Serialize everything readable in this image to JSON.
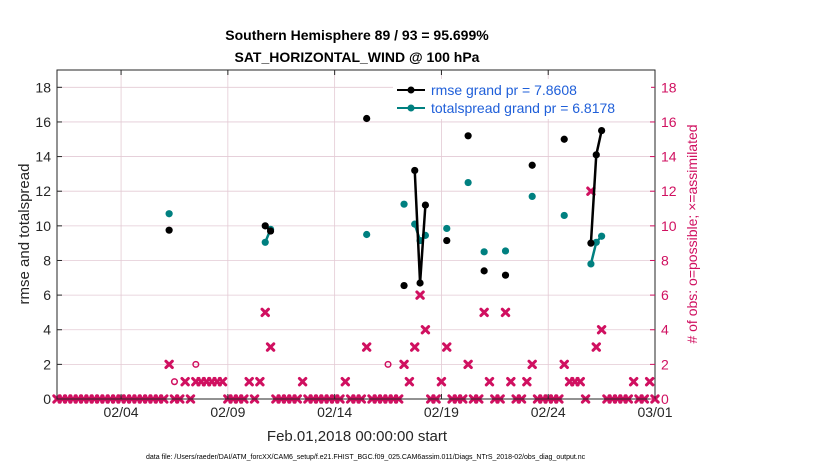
{
  "chart_data": {
    "type": "scatter",
    "title": "Southern Hemisphere 89 / 93 = 95.699%",
    "subtitle": "SAT_HORIZONTAL_WIND @ 100 hPa",
    "xlabel": "Feb.01,2018 00:00:00 start",
    "ylabel": "rmse and totalspread",
    "ylabel_right": "# of obs: o=possible; ×=assimilated",
    "xlim": [
      1,
      29
    ],
    "xtick_values": [
      4,
      9,
      14,
      19,
      24,
      29
    ],
    "xtick_labels": [
      "02/04",
      "02/09",
      "02/14",
      "02/19",
      "02/24",
      "03/01"
    ],
    "ylim": [
      0,
      19
    ],
    "ytick_values": [
      0,
      2,
      4,
      6,
      8,
      10,
      12,
      14,
      16,
      18
    ],
    "ytick_labels": [
      "0",
      "2",
      "4",
      "6",
      "8",
      "10",
      "12",
      "14",
      "16",
      "18"
    ],
    "ylim_right": [
      0,
      19
    ],
    "ytick_labels_right": [
      "0",
      "2",
      "4",
      "6",
      "8",
      "10",
      "12",
      "14",
      "16",
      "18"
    ],
    "grid": true,
    "legend_position": "top-right",
    "footnote": "data file: /Users/raeder/DAI/ATM_forcXX/CAM6_setup/f.e21.FHIST_BGC.f09_025.CAM6assim.011/Diags_NTrS_2018-02/obs_diag_output.nc",
    "series": [
      {
        "name": "rmse grand pr = 7.8608",
        "color": "#000000",
        "marker": "circle",
        "points": [
          [
            6.25,
            9.75
          ],
          [
            10.75,
            10.0
          ],
          [
            11.0,
            9.7
          ],
          [
            15.5,
            16.2
          ],
          [
            17.25,
            6.55
          ],
          [
            17.75,
            13.2
          ],
          [
            18.0,
            6.7
          ],
          [
            18.25,
            11.2
          ],
          [
            19.25,
            9.15
          ],
          [
            20.25,
            15.2
          ],
          [
            21.0,
            7.4
          ],
          [
            22.0,
            7.15
          ],
          [
            23.25,
            13.5
          ],
          [
            24.75,
            15.0
          ],
          [
            26.0,
            9.0
          ],
          [
            26.25,
            14.1
          ],
          [
            26.5,
            15.5
          ]
        ],
        "line_segments": [
          [
            [
              10.75,
              10.0
            ],
            [
              11.0,
              9.7
            ]
          ],
          [
            [
              17.75,
              13.2
            ],
            [
              18.0,
              6.7
            ],
            [
              18.25,
              11.2
            ]
          ],
          [
            [
              26.0,
              9.0
            ],
            [
              26.25,
              14.1
            ],
            [
              26.5,
              15.5
            ]
          ]
        ]
      },
      {
        "name": "totalspread grand pr = 6.8178",
        "color": "#008080",
        "marker": "circle",
        "points": [
          [
            6.25,
            10.7
          ],
          [
            10.75,
            9.05
          ],
          [
            11.0,
            9.8
          ],
          [
            15.5,
            9.5
          ],
          [
            17.25,
            11.25
          ],
          [
            17.75,
            10.1
          ],
          [
            18.0,
            9.15
          ],
          [
            18.25,
            9.45
          ],
          [
            19.25,
            9.85
          ],
          [
            20.25,
            12.5
          ],
          [
            21.0,
            8.5
          ],
          [
            22.0,
            8.55
          ],
          [
            23.25,
            11.7
          ],
          [
            24.75,
            10.6
          ],
          [
            26.0,
            7.8
          ],
          [
            26.25,
            9.05
          ],
          [
            26.5,
            9.4
          ]
        ],
        "line_segments": [
          [
            [
              10.75,
              9.05
            ],
            [
              11.0,
              9.8
            ]
          ],
          [
            [
              17.75,
              10.1
            ],
            [
              18.0,
              9.15
            ],
            [
              18.25,
              9.45
            ]
          ],
          [
            [
              26.0,
              7.8
            ],
            [
              26.25,
              9.05
            ],
            [
              26.5,
              9.4
            ]
          ]
        ]
      },
      {
        "name": "obs assimilated",
        "color": "#d01060",
        "marker": "x",
        "points": [
          [
            1.0,
            0
          ],
          [
            1.25,
            0
          ],
          [
            1.5,
            0
          ],
          [
            1.75,
            0
          ],
          [
            2.0,
            0
          ],
          [
            2.25,
            0
          ],
          [
            2.5,
            0
          ],
          [
            2.75,
            0
          ],
          [
            3.0,
            0
          ],
          [
            3.25,
            0
          ],
          [
            3.5,
            0
          ],
          [
            3.75,
            0
          ],
          [
            4.0,
            0
          ],
          [
            4.25,
            0
          ],
          [
            4.5,
            0
          ],
          [
            4.75,
            0
          ],
          [
            5.0,
            0
          ],
          [
            5.25,
            0
          ],
          [
            5.5,
            0
          ],
          [
            5.75,
            0
          ],
          [
            6.0,
            0
          ],
          [
            6.25,
            2
          ],
          [
            6.5,
            0
          ],
          [
            6.75,
            0
          ],
          [
            7.0,
            1
          ],
          [
            7.25,
            0
          ],
          [
            7.5,
            1
          ],
          [
            7.75,
            1
          ],
          [
            8.0,
            1
          ],
          [
            8.25,
            1
          ],
          [
            8.5,
            1
          ],
          [
            8.75,
            1
          ],
          [
            9.0,
            0
          ],
          [
            9.25,
            0
          ],
          [
            9.5,
            0
          ],
          [
            9.75,
            0
          ],
          [
            10.0,
            1
          ],
          [
            10.25,
            0
          ],
          [
            10.5,
            1
          ],
          [
            10.75,
            5
          ],
          [
            11.0,
            3
          ],
          [
            11.25,
            0
          ],
          [
            11.5,
            0
          ],
          [
            11.75,
            0
          ],
          [
            12.0,
            0
          ],
          [
            12.25,
            0
          ],
          [
            12.5,
            1
          ],
          [
            12.75,
            0
          ],
          [
            13.0,
            0
          ],
          [
            13.25,
            0
          ],
          [
            13.5,
            0
          ],
          [
            13.75,
            0
          ],
          [
            14.0,
            0
          ],
          [
            14.25,
            0
          ],
          [
            14.5,
            1
          ],
          [
            14.75,
            0
          ],
          [
            15.0,
            0
          ],
          [
            15.25,
            0
          ],
          [
            15.5,
            3
          ],
          [
            15.75,
            0
          ],
          [
            16.0,
            0
          ],
          [
            16.25,
            0
          ],
          [
            16.5,
            0
          ],
          [
            16.75,
            0
          ],
          [
            17.0,
            0
          ],
          [
            17.25,
            2
          ],
          [
            17.5,
            1
          ],
          [
            17.75,
            3
          ],
          [
            18.0,
            6
          ],
          [
            18.25,
            4
          ],
          [
            18.5,
            0
          ],
          [
            18.75,
            0
          ],
          [
            19.0,
            1
          ],
          [
            19.25,
            3
          ],
          [
            19.5,
            0
          ],
          [
            19.75,
            0
          ],
          [
            20.0,
            0
          ],
          [
            20.25,
            2
          ],
          [
            20.5,
            0
          ],
          [
            20.75,
            0
          ],
          [
            21.0,
            5
          ],
          [
            21.25,
            1
          ],
          [
            21.5,
            0
          ],
          [
            21.75,
            0
          ],
          [
            22.0,
            5
          ],
          [
            22.25,
            1
          ],
          [
            22.5,
            0
          ],
          [
            22.75,
            0
          ],
          [
            23.0,
            1
          ],
          [
            23.25,
            2
          ],
          [
            23.5,
            0
          ],
          [
            23.75,
            0
          ],
          [
            24.0,
            0
          ],
          [
            24.25,
            0
          ],
          [
            24.5,
            0
          ],
          [
            24.75,
            2
          ],
          [
            25.0,
            1
          ],
          [
            25.25,
            1
          ],
          [
            25.5,
            1
          ],
          [
            25.75,
            0
          ],
          [
            26.0,
            12
          ],
          [
            26.25,
            3
          ],
          [
            26.5,
            4
          ],
          [
            26.75,
            0
          ],
          [
            27.0,
            0
          ],
          [
            27.25,
            0
          ],
          [
            27.5,
            0
          ],
          [
            27.75,
            0
          ],
          [
            28.0,
            1
          ],
          [
            28.25,
            0
          ],
          [
            28.5,
            0
          ],
          [
            28.75,
            1
          ],
          [
            29.0,
            0
          ]
        ]
      },
      {
        "name": "obs possible",
        "color": "#d01060",
        "marker": "open-circle",
        "points": [
          [
            6.5,
            1
          ],
          [
            7.5,
            2
          ],
          [
            16.5,
            2
          ]
        ]
      }
    ]
  }
}
